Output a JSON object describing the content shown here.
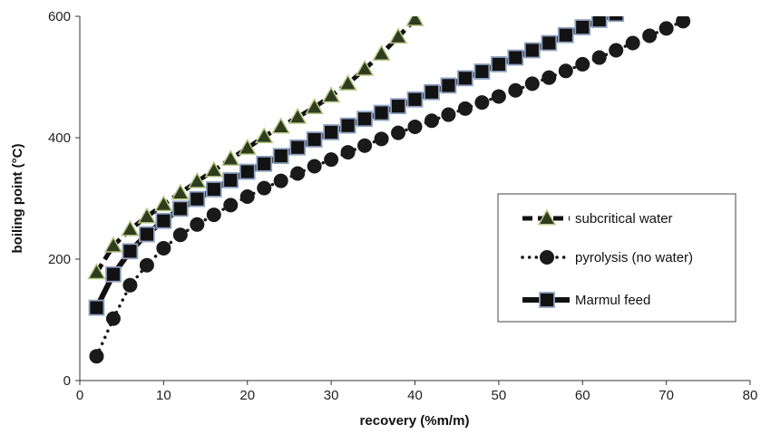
{
  "chart_data": {
    "type": "line",
    "title": "",
    "xlabel": "recovery (%m/m)",
    "ylabel": "boiling point (°C)",
    "xlim": [
      0,
      80
    ],
    "ylim": [
      0,
      600
    ],
    "x_ticks": [
      "0",
      "10",
      "20",
      "30",
      "40",
      "50",
      "60",
      "70",
      "80"
    ],
    "y_ticks": [
      "0",
      "200",
      "400",
      "600"
    ],
    "grid": false,
    "legend_position": "right",
    "series": [
      {
        "name": "subcritical water",
        "marker": "triangle",
        "line_style": "dashed",
        "marker_color": "#2e3d1e",
        "marker_edge": "#b9c98a",
        "x": [
          2,
          4,
          6,
          8,
          10,
          12,
          14,
          16,
          18,
          20,
          22,
          24,
          26,
          28,
          30,
          32,
          34,
          36,
          38,
          40
        ],
        "values": [
          178,
          222,
          249,
          270,
          290,
          309,
          328,
          346,
          365,
          383,
          402,
          418,
          434,
          450,
          469,
          489,
          513,
          538,
          566,
          595
        ]
      },
      {
        "name": "pyrolysis (no water)",
        "marker": "circle",
        "line_style": "dotted",
        "marker_color": "#1a1a1a",
        "marker_edge": "#1a1a1a",
        "x": [
          2,
          4,
          6,
          8,
          10,
          12,
          14,
          16,
          18,
          20,
          22,
          24,
          26,
          28,
          30,
          32,
          34,
          36,
          38,
          40,
          42,
          44,
          46,
          48,
          50,
          52,
          54,
          56,
          58,
          60,
          62,
          64,
          66,
          68,
          70,
          72
        ],
        "values": [
          40,
          102,
          157,
          190,
          218,
          240,
          257,
          273,
          289,
          303,
          317,
          329,
          341,
          353,
          364,
          376,
          387,
          398,
          408,
          418,
          428,
          438,
          448,
          458,
          468,
          478,
          489,
          499,
          510,
          521,
          532,
          544,
          556,
          568,
          580,
          592
        ]
      },
      {
        "name": "Marmul feed",
        "marker": "square",
        "line_style": "solid",
        "marker_color": "#121212",
        "marker_edge": "#8fa3c2",
        "x": [
          2,
          4,
          6,
          8,
          10,
          12,
          14,
          16,
          18,
          20,
          22,
          24,
          26,
          28,
          30,
          32,
          34,
          36,
          38,
          40,
          42,
          44,
          46,
          48,
          50,
          52,
          54,
          56,
          58,
          60,
          62,
          64
        ],
        "values": [
          120,
          175,
          213,
          241,
          263,
          283,
          299,
          315,
          330,
          344,
          357,
          370,
          384,
          397,
          409,
          420,
          431,
          441,
          452,
          463,
          475,
          486,
          498,
          509,
          521,
          532,
          544,
          556,
          569,
          582,
          594,
          604
        ]
      }
    ]
  }
}
